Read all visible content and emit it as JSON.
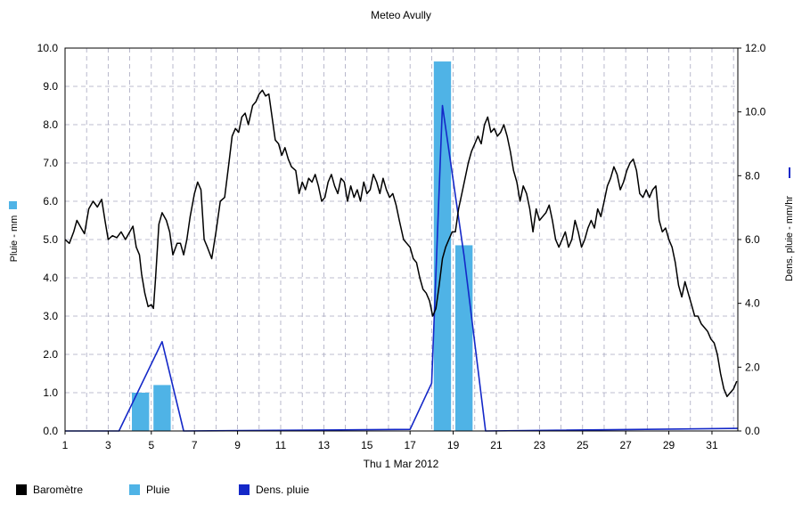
{
  "chart_data": {
    "type": "bar+line",
    "title": "Meteo  Avully",
    "xlabel": "Thu 1 Mar 2012",
    "ylabel_left": "Pluie - mm",
    "ylabel_right": "Dens. pluie - mm/hr",
    "x_ticks": [
      "1",
      "3",
      "5",
      "7",
      "9",
      "11",
      "13",
      "15",
      "17",
      "19",
      "21",
      "23",
      "25",
      "27",
      "29",
      "31"
    ],
    "x_range": [
      1,
      32.2
    ],
    "ylim_left": [
      0,
      10
    ],
    "ylim_right": [
      0,
      12
    ],
    "y_ticks_left": [
      "0.0",
      "1.0",
      "2.0",
      "3.0",
      "4.0",
      "5.0",
      "6.0",
      "7.0",
      "8.0",
      "9.0",
      "10.0"
    ],
    "y_ticks_right": [
      "0.0",
      "2.0",
      "4.0",
      "6.0",
      "8.0",
      "10.0",
      "12.0"
    ],
    "grid": true,
    "legend_position": "bottom",
    "colors": {
      "barometre": "#000000",
      "pluie": "#4fb3e6",
      "dens": "#1428c8",
      "grid": "#a8a8c0"
    },
    "series": [
      {
        "name": "Baromètre",
        "axis": "left",
        "type": "line",
        "points": [
          [
            1.0,
            5.0
          ],
          [
            1.2,
            4.9
          ],
          [
            1.4,
            5.2
          ],
          [
            1.55,
            5.5
          ],
          [
            1.75,
            5.3
          ],
          [
            1.9,
            5.15
          ],
          [
            2.1,
            5.8
          ],
          [
            2.3,
            6.0
          ],
          [
            2.5,
            5.85
          ],
          [
            2.7,
            6.05
          ],
          [
            2.85,
            5.5
          ],
          [
            3.0,
            5.0
          ],
          [
            3.2,
            5.1
          ],
          [
            3.4,
            5.05
          ],
          [
            3.6,
            5.2
          ],
          [
            3.8,
            5.0
          ],
          [
            4.0,
            5.2
          ],
          [
            4.15,
            5.35
          ],
          [
            4.3,
            4.8
          ],
          [
            4.45,
            4.6
          ],
          [
            4.55,
            4.1
          ],
          [
            4.7,
            3.6
          ],
          [
            4.85,
            3.25
          ],
          [
            5.0,
            3.3
          ],
          [
            5.1,
            3.2
          ],
          [
            5.2,
            4.0
          ],
          [
            5.35,
            5.4
          ],
          [
            5.5,
            5.7
          ],
          [
            5.7,
            5.5
          ],
          [
            5.85,
            5.2
          ],
          [
            6.0,
            4.6
          ],
          [
            6.2,
            4.9
          ],
          [
            6.35,
            4.9
          ],
          [
            6.5,
            4.6
          ],
          [
            6.65,
            5.0
          ],
          [
            6.8,
            5.6
          ],
          [
            7.0,
            6.2
          ],
          [
            7.15,
            6.5
          ],
          [
            7.3,
            6.3
          ],
          [
            7.45,
            5.0
          ],
          [
            7.6,
            4.8
          ],
          [
            7.8,
            4.5
          ],
          [
            8.0,
            5.2
          ],
          [
            8.2,
            6.0
          ],
          [
            8.4,
            6.1
          ],
          [
            8.6,
            7.0
          ],
          [
            8.75,
            7.7
          ],
          [
            8.9,
            7.9
          ],
          [
            9.05,
            7.8
          ],
          [
            9.2,
            8.2
          ],
          [
            9.35,
            8.3
          ],
          [
            9.5,
            8.0
          ],
          [
            9.7,
            8.5
          ],
          [
            9.85,
            8.6
          ],
          [
            10.0,
            8.8
          ],
          [
            10.15,
            8.9
          ],
          [
            10.3,
            8.75
          ],
          [
            10.45,
            8.8
          ],
          [
            10.6,
            8.2
          ],
          [
            10.75,
            7.6
          ],
          [
            10.9,
            7.5
          ],
          [
            11.05,
            7.2
          ],
          [
            11.2,
            7.4
          ],
          [
            11.35,
            7.1
          ],
          [
            11.5,
            6.9
          ],
          [
            11.7,
            6.8
          ],
          [
            11.85,
            6.2
          ],
          [
            12.0,
            6.5
          ],
          [
            12.15,
            6.3
          ],
          [
            12.3,
            6.6
          ],
          [
            12.45,
            6.5
          ],
          [
            12.6,
            6.7
          ],
          [
            12.75,
            6.4
          ],
          [
            12.9,
            6.0
          ],
          [
            13.05,
            6.1
          ],
          [
            13.2,
            6.5
          ],
          [
            13.35,
            6.7
          ],
          [
            13.5,
            6.4
          ],
          [
            13.65,
            6.2
          ],
          [
            13.8,
            6.6
          ],
          [
            13.95,
            6.5
          ],
          [
            14.1,
            6.0
          ],
          [
            14.25,
            6.4
          ],
          [
            14.4,
            6.1
          ],
          [
            14.55,
            6.3
          ],
          [
            14.7,
            6.0
          ],
          [
            14.85,
            6.5
          ],
          [
            15.0,
            6.2
          ],
          [
            15.15,
            6.3
          ],
          [
            15.3,
            6.7
          ],
          [
            15.45,
            6.5
          ],
          [
            15.6,
            6.2
          ],
          [
            15.75,
            6.6
          ],
          [
            15.9,
            6.3
          ],
          [
            16.05,
            6.1
          ],
          [
            16.2,
            6.2
          ],
          [
            16.35,
            5.9
          ],
          [
            16.5,
            5.5
          ],
          [
            16.7,
            5.0
          ],
          [
            16.85,
            4.9
          ],
          [
            17.0,
            4.8
          ],
          [
            17.15,
            4.5
          ],
          [
            17.3,
            4.4
          ],
          [
            17.45,
            4.0
          ],
          [
            17.6,
            3.7
          ],
          [
            17.75,
            3.6
          ],
          [
            17.9,
            3.4
          ],
          [
            18.05,
            3.0
          ],
          [
            18.2,
            3.2
          ],
          [
            18.35,
            3.8
          ],
          [
            18.5,
            4.5
          ],
          [
            18.65,
            4.8
          ],
          [
            18.8,
            5.0
          ],
          [
            18.95,
            5.2
          ],
          [
            19.1,
            5.2
          ],
          [
            19.25,
            5.8
          ],
          [
            19.4,
            6.2
          ],
          [
            19.55,
            6.6
          ],
          [
            19.7,
            7.0
          ],
          [
            19.85,
            7.3
          ],
          [
            20.0,
            7.5
          ],
          [
            20.15,
            7.7
          ],
          [
            20.3,
            7.5
          ],
          [
            20.45,
            8.0
          ],
          [
            20.6,
            8.2
          ],
          [
            20.75,
            7.8
          ],
          [
            20.9,
            7.9
          ],
          [
            21.05,
            7.7
          ],
          [
            21.2,
            7.8
          ],
          [
            21.35,
            8.0
          ],
          [
            21.5,
            7.7
          ],
          [
            21.65,
            7.3
          ],
          [
            21.8,
            6.8
          ],
          [
            21.95,
            6.5
          ],
          [
            22.1,
            6.0
          ],
          [
            22.25,
            6.4
          ],
          [
            22.4,
            6.2
          ],
          [
            22.55,
            5.8
          ],
          [
            22.7,
            5.2
          ],
          [
            22.85,
            5.8
          ],
          [
            23.0,
            5.5
          ],
          [
            23.15,
            5.6
          ],
          [
            23.3,
            5.7
          ],
          [
            23.45,
            5.9
          ],
          [
            23.6,
            5.5
          ],
          [
            23.75,
            5.0
          ],
          [
            23.9,
            4.8
          ],
          [
            24.05,
            5.0
          ],
          [
            24.2,
            5.2
          ],
          [
            24.35,
            4.8
          ],
          [
            24.5,
            5.0
          ],
          [
            24.65,
            5.5
          ],
          [
            24.8,
            5.2
          ],
          [
            24.95,
            4.8
          ],
          [
            25.1,
            5.0
          ],
          [
            25.25,
            5.3
          ],
          [
            25.4,
            5.5
          ],
          [
            25.55,
            5.3
          ],
          [
            25.7,
            5.8
          ],
          [
            25.85,
            5.6
          ],
          [
            26.0,
            6.0
          ],
          [
            26.15,
            6.4
          ],
          [
            26.3,
            6.6
          ],
          [
            26.45,
            6.9
          ],
          [
            26.6,
            6.7
          ],
          [
            26.75,
            6.3
          ],
          [
            26.9,
            6.5
          ],
          [
            27.05,
            6.8
          ],
          [
            27.2,
            7.0
          ],
          [
            27.35,
            7.1
          ],
          [
            27.5,
            6.8
          ],
          [
            27.65,
            6.2
          ],
          [
            27.8,
            6.1
          ],
          [
            27.95,
            6.3
          ],
          [
            28.1,
            6.1
          ],
          [
            28.25,
            6.3
          ],
          [
            28.4,
            6.4
          ],
          [
            28.55,
            5.5
          ],
          [
            28.7,
            5.2
          ],
          [
            28.85,
            5.3
          ],
          [
            29.0,
            5.0
          ],
          [
            29.15,
            4.8
          ],
          [
            29.3,
            4.4
          ],
          [
            29.45,
            3.8
          ],
          [
            29.6,
            3.5
          ],
          [
            29.75,
            3.9
          ],
          [
            29.9,
            3.6
          ],
          [
            30.05,
            3.3
          ],
          [
            30.2,
            3.0
          ],
          [
            30.35,
            3.0
          ],
          [
            30.5,
            2.8
          ],
          [
            30.65,
            2.7
          ],
          [
            30.8,
            2.6
          ],
          [
            30.95,
            2.4
          ],
          [
            31.1,
            2.3
          ],
          [
            31.25,
            2.0
          ],
          [
            31.4,
            1.5
          ],
          [
            31.55,
            1.1
          ],
          [
            31.7,
            0.9
          ],
          [
            31.85,
            1.0
          ],
          [
            32.0,
            1.1
          ],
          [
            32.15,
            1.3
          ]
        ]
      },
      {
        "name": "Pluie",
        "axis": "left",
        "type": "bar",
        "bars": [
          {
            "x": 4.5,
            "value": 1.0
          },
          {
            "x": 5.5,
            "value": 1.2
          },
          {
            "x": 18.5,
            "value": 9.65
          },
          {
            "x": 19.5,
            "value": 4.85
          }
        ]
      },
      {
        "name": "Dens. pluie",
        "axis": "right",
        "type": "line",
        "points": [
          [
            1.0,
            0.0
          ],
          [
            3.5,
            0.0
          ],
          [
            5.5,
            2.8
          ],
          [
            6.5,
            0.0
          ],
          [
            17.0,
            0.05
          ],
          [
            18.0,
            1.5
          ],
          [
            18.5,
            10.2
          ],
          [
            19.5,
            5.5
          ],
          [
            20.5,
            0.0
          ],
          [
            32.2,
            0.08
          ]
        ]
      }
    ]
  }
}
